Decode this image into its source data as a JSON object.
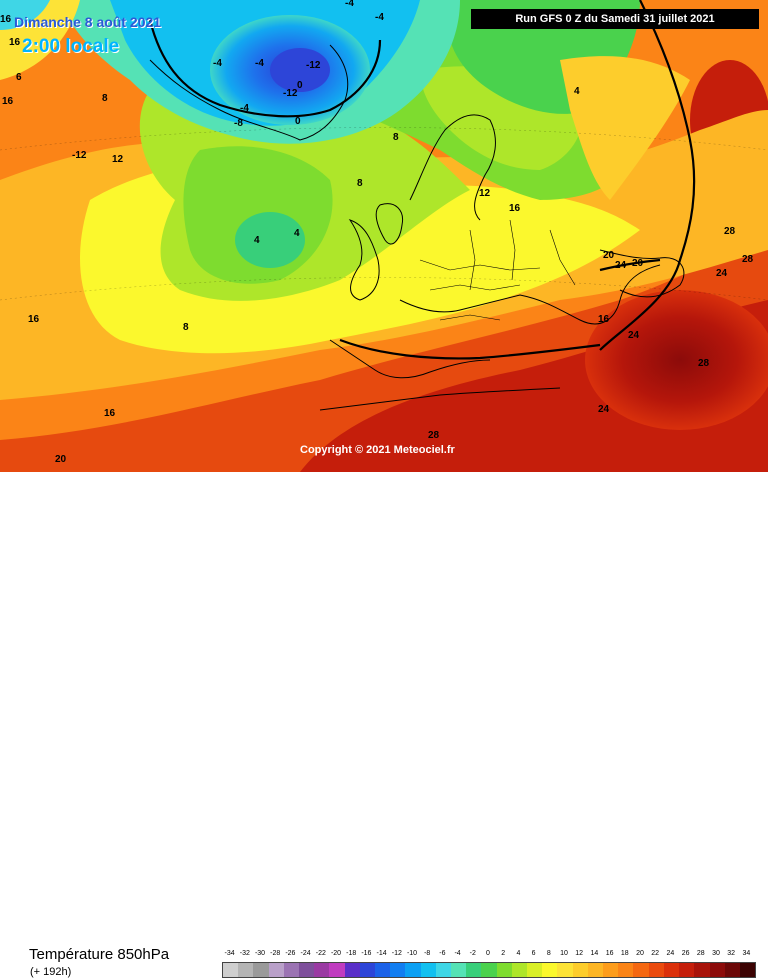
{
  "header": {
    "date_label": "Dimanche 8 août 2021",
    "time_label": "2:00 locale",
    "run_label": "Run GFS 0 Z du Samedi 31 juillet 2021"
  },
  "map": {
    "copyright": "Copyright © 2021 Meteociel.fr",
    "isotherm_labels": [
      {
        "text": "16",
        "zone": "west-edge"
      },
      {
        "text": "16",
        "zone": "west-edge"
      },
      {
        "text": "16",
        "zone": "west-edge"
      },
      {
        "text": "6",
        "zone": "northwest"
      },
      {
        "text": "-4",
        "zone": "north-atlantic"
      },
      {
        "text": "-4",
        "zone": "greenland"
      },
      {
        "text": "-4",
        "zone": "greenland"
      },
      {
        "text": "-8",
        "zone": "greenland"
      },
      {
        "text": "-12",
        "zone": "greenland"
      },
      {
        "text": "-12",
        "zone": "greenland"
      },
      {
        "text": "-12",
        "zone": "west-edge"
      },
      {
        "text": "-4",
        "zone": "greenland"
      },
      {
        "text": "0",
        "zone": "greenland"
      },
      {
        "text": "0",
        "zone": "greenland"
      },
      {
        "text": "-4",
        "zone": "north"
      },
      {
        "text": "4",
        "zone": "north"
      },
      {
        "text": "8",
        "zone": "atlantic"
      },
      {
        "text": "12",
        "zone": "atlantic"
      },
      {
        "text": "16",
        "zone": "atlantic"
      },
      {
        "text": "4",
        "zone": "atlantic"
      },
      {
        "text": "4",
        "zone": "atlantic"
      },
      {
        "text": "8",
        "zone": "atlantic"
      },
      {
        "text": "8",
        "zone": "europe"
      },
      {
        "text": "8",
        "zone": "europe"
      },
      {
        "text": "12",
        "zone": "europe"
      },
      {
        "text": "16",
        "zone": "europe"
      },
      {
        "text": "16",
        "zone": "europe"
      },
      {
        "text": "20",
        "zone": "east"
      },
      {
        "text": "24",
        "zone": "east"
      },
      {
        "text": "20",
        "zone": "east"
      },
      {
        "text": "24",
        "zone": "east"
      },
      {
        "text": "28",
        "zone": "east"
      },
      {
        "text": "28",
        "zone": "east"
      },
      {
        "text": "24",
        "zone": "south"
      },
      {
        "text": "24",
        "zone": "south"
      },
      {
        "text": "28",
        "zone": "south"
      },
      {
        "text": "28",
        "zone": "south"
      },
      {
        "text": "20",
        "zone": "south-west"
      },
      {
        "text": "16",
        "zone": "south-west"
      }
    ]
  },
  "footer": {
    "variable_title": "Température 850hPa",
    "forecast_offset": "(+ 192h)"
  },
  "legend": {
    "ticks": [
      "-34",
      "-32",
      "-30",
      "-28",
      "-26",
      "-24",
      "-22",
      "-20",
      "-18",
      "-16",
      "-14",
      "-12",
      "-10",
      "-8",
      "-6",
      "-4",
      "-2",
      "0",
      "2",
      "4",
      "6",
      "8",
      "10",
      "12",
      "14",
      "16",
      "18",
      "20",
      "22",
      "24",
      "26",
      "28",
      "30",
      "32",
      "34"
    ],
    "colors": [
      "#cfcfcf",
      "#b4b4b4",
      "#9a9a9a",
      "#b9a0c9",
      "#9b73b3",
      "#7e4f9b",
      "#9a3aa3",
      "#c03cc0",
      "#5a2fc9",
      "#2d45d8",
      "#1c62e8",
      "#127ef1",
      "#0ca0f3",
      "#12c0f0",
      "#3fd6e6",
      "#55e2b5",
      "#38cf7a",
      "#4ad24d",
      "#7edc2f",
      "#aee62a",
      "#d9ef27",
      "#fbf82d",
      "#fde337",
      "#fdcd2c",
      "#fdb625",
      "#fd9d1c",
      "#fb8417",
      "#f56812",
      "#ea4b0e",
      "#db300b",
      "#c51e0b",
      "#a8130a",
      "#8c0b0a",
      "#6c0707",
      "#3c0303"
    ]
  }
}
